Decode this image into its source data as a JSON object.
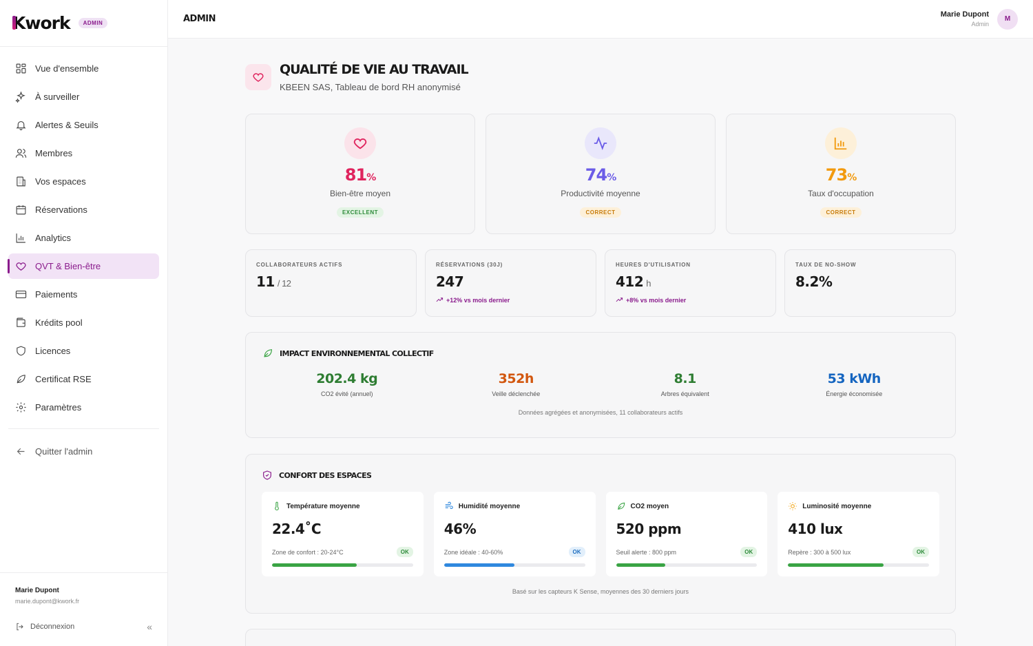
{
  "brand": {
    "logo_k": "K",
    "logo_rest": "work",
    "badge": "ADMIN"
  },
  "nav": {
    "items": [
      {
        "label": "Vue d'ensemble",
        "icon": "grid-icon"
      },
      {
        "label": "À surveiller",
        "icon": "sparkle-icon"
      },
      {
        "label": "Alertes & Seuils",
        "icon": "bell-icon"
      },
      {
        "label": "Membres",
        "icon": "users-icon"
      },
      {
        "label": "Vos espaces",
        "icon": "building-icon"
      },
      {
        "label": "Réservations",
        "icon": "calendar-icon"
      },
      {
        "label": "Analytics",
        "icon": "bar-chart-icon"
      },
      {
        "label": "QVT & Bien-être",
        "icon": "heart-icon"
      },
      {
        "label": "Paiements",
        "icon": "credit-card-icon"
      },
      {
        "label": "Krédits pool",
        "icon": "wallet-icon"
      },
      {
        "label": "Licences",
        "icon": "shield-icon"
      },
      {
        "label": "Certificat RSE",
        "icon": "leaf-icon"
      },
      {
        "label": "Paramètres",
        "icon": "gear-icon"
      }
    ],
    "active": "QVT & Bien-être",
    "quit": "Quitter l'admin"
  },
  "sidebar_footer": {
    "name": "Marie Dupont",
    "email": "marie.dupont@kwork.fr",
    "logout": "Déconnexion",
    "collapse": "«"
  },
  "header": {
    "title": "ADMIN",
    "user_name": "Marie Dupont",
    "user_role": "Admin",
    "avatar": "M"
  },
  "page": {
    "title": "QUALITÉ DE VIE AU TRAVAIL",
    "subtitle": "KBEEN SAS, Tableau de bord RH anonymisé"
  },
  "kpis": [
    {
      "value": "81",
      "unit": "%",
      "label": "Bien-être moyen",
      "badge": "EXCELLENT",
      "color": "#e0245e",
      "icon_bg": "#fbe3ea",
      "badge_bg": "#e3f4e4",
      "badge_color": "#2e8b3a"
    },
    {
      "value": "74",
      "unit": "%",
      "label": "Productivité moyenne",
      "badge": "CORRECT",
      "color": "#6b5ce7",
      "icon_bg": "#e9e7fb",
      "badge_bg": "#fdf0d9",
      "badge_color": "#c77b0a"
    },
    {
      "value": "73",
      "unit": "%",
      "label": "Taux d'occupation",
      "badge": "CORRECT",
      "color": "#f29a0e",
      "icon_bg": "#fdf0d9",
      "badge_bg": "#fdf0d9",
      "badge_color": "#c77b0a"
    }
  ],
  "stats": [
    {
      "label": "COLLABORATEURS ACTIFS",
      "value": "11",
      "suffix": "/ 12",
      "trend": ""
    },
    {
      "label": "RÉSERVATIONS (30J)",
      "value": "247",
      "suffix": "",
      "trend": "+12% vs mois dernier"
    },
    {
      "label": "HEURES D'UTILISATION",
      "value": "412",
      "suffix": "h",
      "trend": "+8% vs mois dernier"
    },
    {
      "label": "TAUX DE NO-SHOW",
      "value": "8.2%",
      "suffix": "",
      "trend": ""
    }
  ],
  "environment": {
    "title": "IMPACT ENVIRONNEMENTAL COLLECTIF",
    "items": [
      {
        "value": "202.4 kg",
        "label": "CO2 évité (annuel)",
        "color": "#2e7d32"
      },
      {
        "value": "352h",
        "label": "Veille déclenchée",
        "color": "#d2570f"
      },
      {
        "value": "8.1",
        "label": "Arbres équivalent",
        "color": "#2e7d32"
      },
      {
        "value": "53 kWh",
        "label": "Énergie économisée",
        "color": "#1565c0"
      }
    ],
    "note": "Données agrégées et anonymisées, 11 collaborateurs actifs"
  },
  "comfort": {
    "title": "CONFORT DES ESPACES",
    "items": [
      {
        "label": "Température moyenne",
        "value": "22.4˚C",
        "zone": "Zone de confort : 20-24°C",
        "status": "OK",
        "level": 0.6,
        "bar_color": "#3aa444",
        "ok_bg": "#e3f4e4",
        "ok_color": "#2e8b3a",
        "icon": "thermometer-icon"
      },
      {
        "label": "Humidité moyenne",
        "value": "46%",
        "zone": "Zone idéale : 40-60%",
        "status": "OK",
        "level": 0.5,
        "bar_color": "#2f88de",
        "ok_bg": "#e2effb",
        "ok_color": "#1f6fc0",
        "icon": "wind-icon"
      },
      {
        "label": "CO2 moyen",
        "value": "520 ppm",
        "zone": "Seuil alerte : 800 ppm",
        "status": "OK",
        "level": 0.35,
        "bar_color": "#3aa444",
        "ok_bg": "#e3f4e4",
        "ok_color": "#2e8b3a",
        "icon": "leaf-icon"
      },
      {
        "label": "Luminosité moyenne",
        "value": "410 lux",
        "zone": "Repère : 300 à 500 lux",
        "status": "OK",
        "level": 0.68,
        "bar_color": "#3aa444",
        "ok_bg": "#e3f4e4",
        "ok_color": "#2e8b3a",
        "icon": "sun-icon"
      }
    ],
    "note": "Basé sur les capteurs K Sense, moyennes des 30 derniers jours"
  },
  "colors": {
    "accent": "#8a1b8c",
    "active_bg": "#f2e3f6"
  }
}
